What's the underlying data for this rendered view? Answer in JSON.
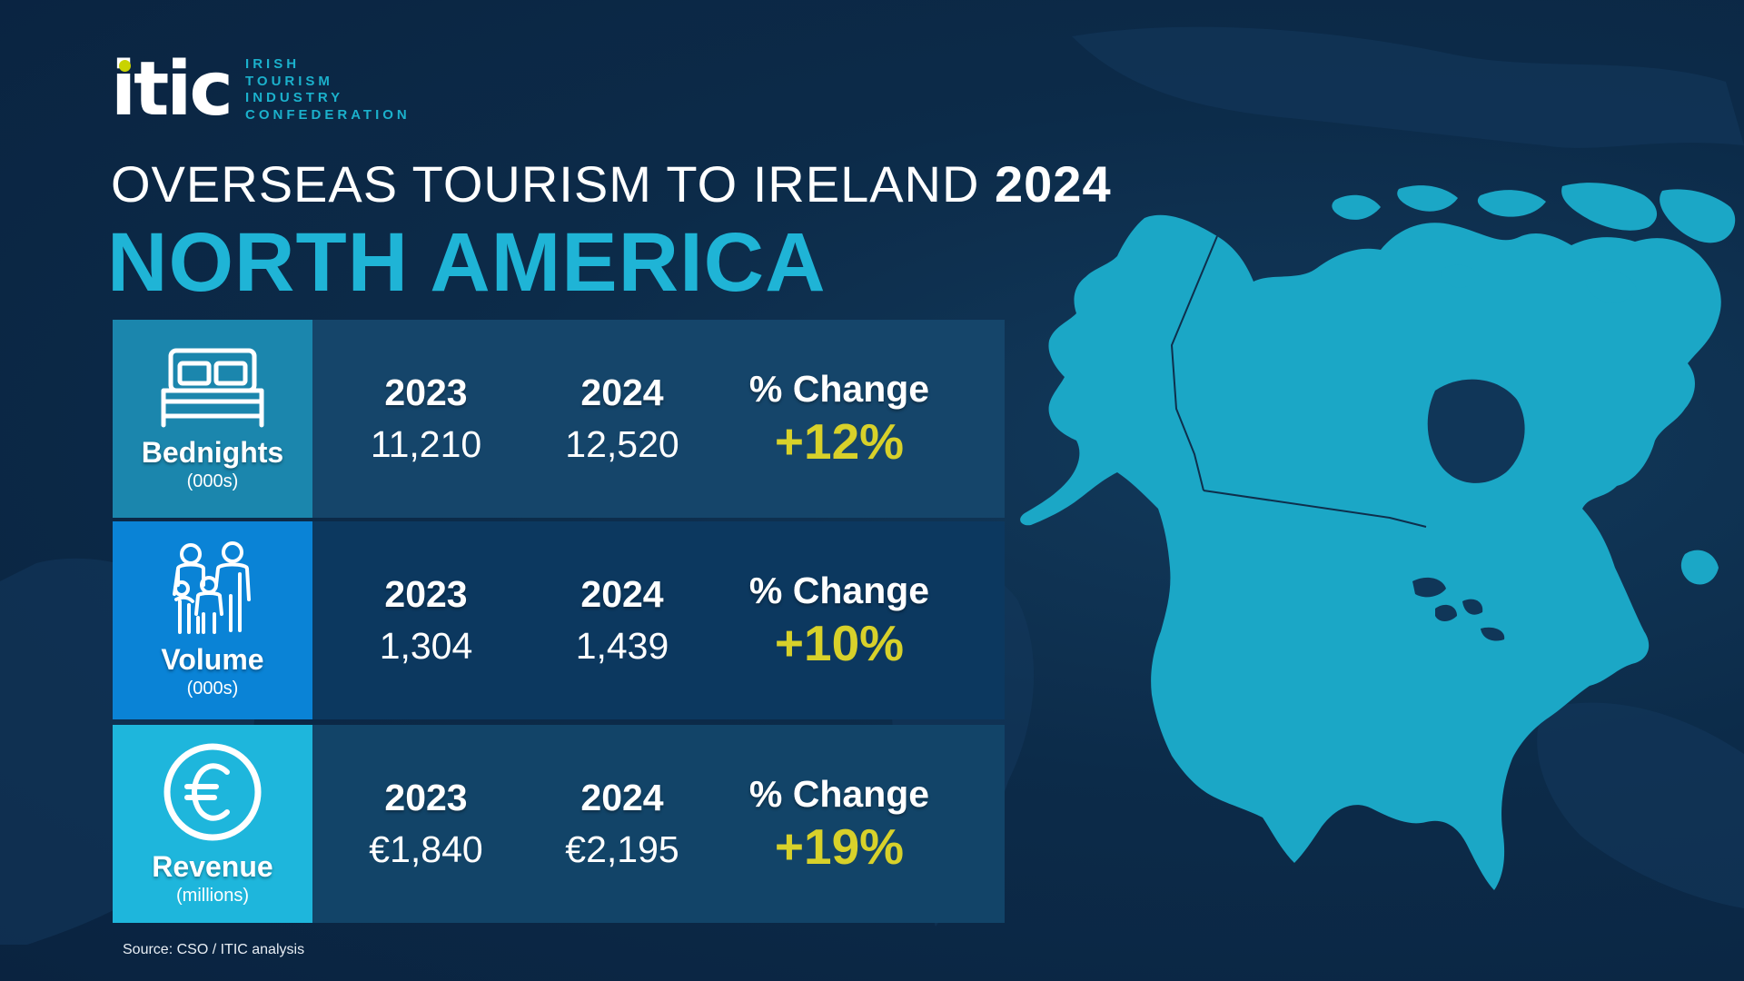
{
  "logo": {
    "mark": "itic",
    "text_lines": [
      "IRISH",
      "TOURISM",
      "INDUSTRY",
      "CONFEDERATION"
    ]
  },
  "title": {
    "line1_prefix": "OVERSEAS TOURISM TO IRELAND",
    "line1_year": "2024",
    "region": "NORTH AMERICA"
  },
  "table": {
    "rows": [
      {
        "icon": "bed-icon",
        "label": "Bednights",
        "unit": "(000s)",
        "col1_head": "2023",
        "col1_value": "11,210",
        "col2_head": "2024",
        "col2_value": "12,520",
        "col3_head": "% Change",
        "col3_value": "+12%"
      },
      {
        "icon": "family-icon",
        "label": "Volume",
        "unit": "(000s)",
        "col1_head": "2023",
        "col1_value": "1,304",
        "col2_head": "2024",
        "col2_value": "1,439",
        "col3_head": "% Change",
        "col3_value": "+10%"
      },
      {
        "icon": "euro-icon",
        "label": "Revenue",
        "unit": "(millions)",
        "col1_head": "2023",
        "col1_value": "€1,840",
        "col2_head": "2024",
        "col2_value": "€2,195",
        "col3_head": "% Change",
        "col3_value": "+19%"
      }
    ]
  },
  "source": "Source: CSO / ITIC analysis",
  "colors": {
    "background": "#0c2b49",
    "accent_cyan": "#1fb4d6",
    "change_yellow": "#d8d12a",
    "logo_dot": "#c9d300",
    "map_fill": "#1ba7c6"
  }
}
